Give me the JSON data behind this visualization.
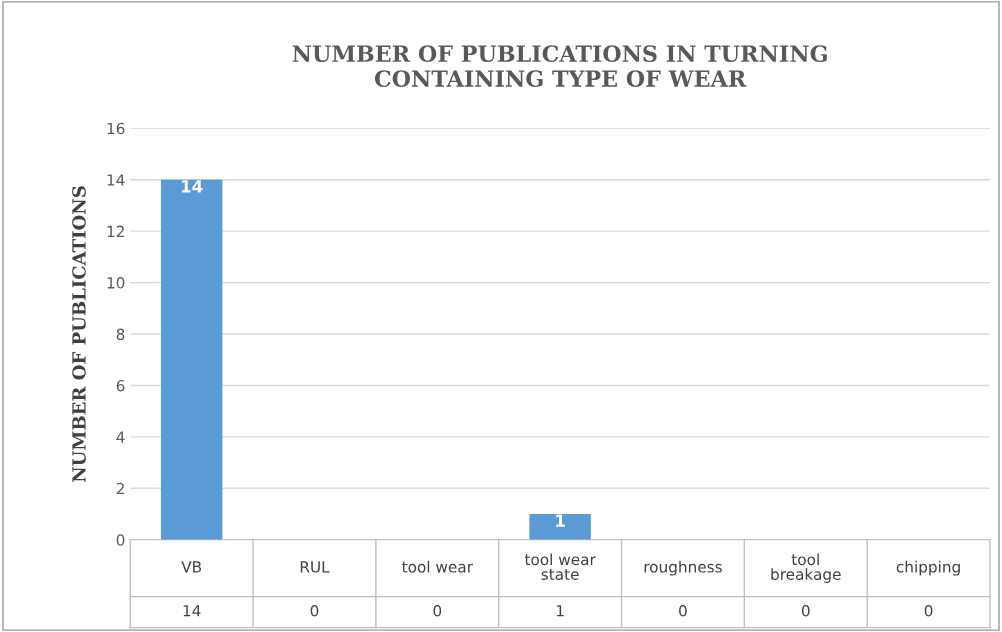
{
  "chart_data": {
    "type": "bar",
    "title": "NUMBER OF PUBLICATIONS IN TURNING\nCONTAINING TYPE OF WEAR",
    "ylabel": "NUMBER OF PUBLICATIONS",
    "categories": [
      "VB",
      "RUL",
      "tool wear",
      "tool wear state",
      "roughness",
      "tool breakage",
      "chipping"
    ],
    "values": [
      14,
      0,
      0,
      1,
      0,
      0,
      0
    ],
    "annotations": [
      {
        "text": "14",
        "x": "VB",
        "y": 14
      },
      {
        "text": "1",
        "x": "tool wear state",
        "y": 1
      }
    ],
    "color": "#5b9bd5",
    "ylim": [
      0,
      16
    ],
    "yticks": [
      0,
      2,
      4,
      6,
      8,
      10,
      12,
      14,
      16
    ],
    "grid": "y",
    "data_labels": true
  }
}
